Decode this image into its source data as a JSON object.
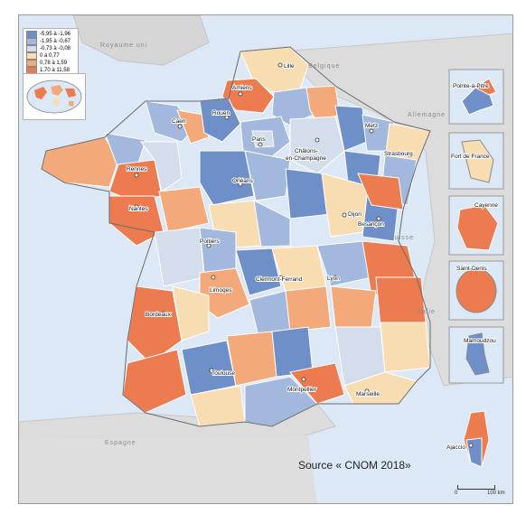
{
  "legend": {
    "classes": [
      {
        "label": "-5,95 à -1,96",
        "color": "#6e8fc8"
      },
      {
        "label": "-1,95 à -0,67",
        "color": "#a3b8dd"
      },
      {
        "label": "-0,73 à -0,08",
        "color": "#d4ddec"
      },
      {
        "label": "0 à 0,77",
        "color": "#f8dcb2"
      },
      {
        "label": "0,78 à 1,59",
        "color": "#f4a97a"
      },
      {
        "label": "1,70 à 11,58",
        "color": "#ec7c4f"
      }
    ]
  },
  "countries": {
    "uk": "Royaume uni",
    "belgium": "Belgique",
    "germany": "Allemagne",
    "switzerland": "Suisse",
    "italy": "Italie",
    "spain": "Espagne"
  },
  "cities": {
    "lille": "Lille",
    "amiens": "Amiens",
    "rouen": "Rouen",
    "caen": "Caen",
    "paris": "Paris",
    "chalons": "Châlons-\nen-Champagne",
    "metz": "Metz",
    "strasbourg": "Strasbourg",
    "rennes": "Rennes",
    "nantes": "Nantes",
    "orleans": "Orléans",
    "dijon": "Dijon",
    "besancon": "Besançon",
    "poitiers": "Poitiers",
    "limoges": "Limoges",
    "clermont": "Clermont-Ferrand",
    "lyon": "Lyon",
    "bordeaux": "Bordeaux",
    "toulouse": "Toulouse",
    "montpellier": "Montpellier",
    "marseille": "Marseille",
    "ajaccio": "Ajaccio"
  },
  "insets": {
    "guadeloupe": "Pointe-à-Pitre",
    "martinique": "Fort de France",
    "guyane": "Cayenne",
    "reunion": "Saint-Denis",
    "mayotte": "Mamoudzou"
  },
  "source": "Source « CNOM 2018»",
  "scale": {
    "zero": "0",
    "max": "100 km"
  }
}
